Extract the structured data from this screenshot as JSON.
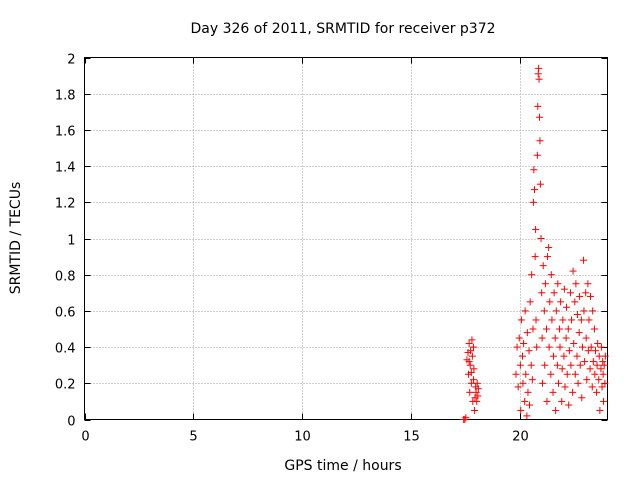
{
  "chart_data": {
    "type": "scatter",
    "title": "Day 326 of 2011, SRMTID for receiver p372",
    "xlabel": "GPS time / hours",
    "ylabel": "SRMTID / TECUs",
    "xlim": [
      0,
      24
    ],
    "ylim": [
      0,
      2
    ],
    "xticks": [
      0,
      5,
      10,
      15,
      20
    ],
    "yticks": [
      0,
      0.2,
      0.4,
      0.6,
      0.8,
      1,
      1.2,
      1.4,
      1.6,
      1.8,
      2
    ],
    "grid": true,
    "marker": "+",
    "color": "#ff0000",
    "series": [
      {
        "name": "p372",
        "points": [
          [
            17.4,
            0.0
          ],
          [
            17.45,
            0.0
          ],
          [
            17.5,
            0.01
          ],
          [
            17.55,
            0.33
          ],
          [
            17.6,
            0.37
          ],
          [
            17.62,
            0.25
          ],
          [
            17.65,
            0.42
          ],
          [
            17.68,
            0.15
          ],
          [
            17.7,
            0.3
          ],
          [
            17.72,
            0.38
          ],
          [
            17.75,
            0.2
          ],
          [
            17.78,
            0.44
          ],
          [
            17.8,
            0.35
          ],
          [
            17.82,
            0.1
          ],
          [
            17.85,
            0.4
          ],
          [
            17.87,
            0.28
          ],
          [
            17.9,
            0.05
          ],
          [
            17.92,
            0.12
          ],
          [
            17.95,
            0.18
          ],
          [
            17.97,
            0.15
          ],
          [
            18.0,
            0.1
          ],
          [
            18.02,
            0.2
          ],
          [
            18.05,
            0.13
          ],
          [
            18.07,
            0.17
          ],
          [
            17.65,
            0.32
          ],
          [
            17.75,
            0.26
          ],
          [
            17.85,
            0.22
          ],
          [
            19.8,
            0.25
          ],
          [
            19.85,
            0.4
          ],
          [
            19.9,
            0.18
          ],
          [
            19.95,
            0.45
          ],
          [
            20.0,
            0.3
          ],
          [
            20.02,
            0.05
          ],
          [
            20.05,
            0.55
          ],
          [
            20.1,
            0.35
          ],
          [
            20.12,
            0.2
          ],
          [
            20.15,
            0.42
          ],
          [
            20.2,
            0.1
          ],
          [
            20.22,
            0.6
          ],
          [
            20.25,
            0.25
          ],
          [
            20.3,
            0.02
          ],
          [
            20.32,
            0.48
          ],
          [
            20.35,
            0.15
          ],
          [
            20.4,
            0.38
          ],
          [
            20.42,
            0.08
          ],
          [
            20.45,
            0.65
          ],
          [
            20.5,
            0.3
          ],
          [
            20.52,
            0.8
          ],
          [
            20.55,
            0.22
          ],
          [
            20.58,
            0.5
          ],
          [
            20.6,
            1.2
          ],
          [
            20.62,
            1.38
          ],
          [
            20.65,
            1.27
          ],
          [
            20.68,
            0.9
          ],
          [
            20.7,
            1.05
          ],
          [
            20.72,
            0.55
          ],
          [
            20.75,
            0.4
          ],
          [
            20.78,
            1.46
          ],
          [
            20.8,
            1.73
          ],
          [
            20.82,
            1.91
          ],
          [
            20.84,
            1.94
          ],
          [
            20.86,
            1.88
          ],
          [
            20.88,
            1.67
          ],
          [
            20.9,
            1.54
          ],
          [
            20.92,
            1.3
          ],
          [
            20.95,
            1.0
          ],
          [
            20.98,
            0.7
          ],
          [
            21.0,
            0.45
          ],
          [
            21.02,
            0.2
          ],
          [
            21.05,
            0.85
          ],
          [
            21.1,
            0.6
          ],
          [
            21.12,
            0.3
          ],
          [
            21.15,
            0.75
          ],
          [
            21.2,
            0.5
          ],
          [
            21.22,
            0.1
          ],
          [
            21.25,
            0.9
          ],
          [
            21.3,
            0.95
          ],
          [
            21.32,
            0.4
          ],
          [
            21.35,
            0.65
          ],
          [
            21.4,
            0.25
          ],
          [
            21.42,
            0.8
          ],
          [
            21.45,
            0.55
          ],
          [
            21.5,
            0.15
          ],
          [
            21.52,
            0.35
          ],
          [
            21.55,
            0.7
          ],
          [
            21.6,
            0.45
          ],
          [
            21.62,
            0.05
          ],
          [
            21.65,
            0.6
          ],
          [
            21.7,
            0.3
          ],
          [
            21.72,
            0.75
          ],
          [
            21.75,
            0.2
          ],
          [
            21.8,
            0.5
          ],
          [
            21.82,
            0.4
          ],
          [
            21.85,
            0.65
          ],
          [
            21.9,
            0.1
          ],
          [
            21.92,
            0.28
          ],
          [
            21.95,
            0.55
          ],
          [
            22.0,
            0.35
          ],
          [
            22.02,
            0.72
          ],
          [
            22.05,
            0.18
          ],
          [
            22.1,
            0.45
          ],
          [
            22.12,
            0.62
          ],
          [
            22.15,
            0.25
          ],
          [
            22.2,
            0.5
          ],
          [
            22.22,
            0.08
          ],
          [
            22.25,
            0.38
          ],
          [
            22.3,
            0.7
          ],
          [
            22.32,
            0.3
          ],
          [
            22.35,
            0.55
          ],
          [
            22.4,
            0.15
          ],
          [
            22.42,
            0.82
          ],
          [
            22.45,
            0.42
          ],
          [
            22.5,
            0.65
          ],
          [
            22.52,
            0.25
          ],
          [
            22.55,
            0.75
          ],
          [
            22.6,
            0.35
          ],
          [
            22.62,
            0.58
          ],
          [
            22.65,
            0.2
          ],
          [
            22.7,
            0.48
          ],
          [
            22.72,
            0.68
          ],
          [
            22.75,
            0.3
          ],
          [
            22.8,
            0.55
          ],
          [
            22.82,
            0.12
          ],
          [
            22.85,
            0.4
          ],
          [
            22.9,
            0.88
          ],
          [
            22.92,
            0.6
          ],
          [
            22.95,
            0.32
          ],
          [
            23.0,
            0.7
          ],
          [
            23.02,
            0.45
          ],
          [
            23.05,
            0.22
          ],
          [
            23.1,
            0.75
          ],
          [
            23.12,
            0.38
          ],
          [
            23.15,
            0.55
          ],
          [
            23.2,
            0.28
          ],
          [
            23.22,
            0.68
          ],
          [
            23.25,
            0.4
          ],
          [
            23.3,
            0.18
          ],
          [
            23.32,
            0.6
          ],
          [
            23.35,
            0.32
          ],
          [
            23.4,
            0.5
          ],
          [
            23.42,
            0.25
          ],
          [
            23.45,
            0.38
          ],
          [
            23.5,
            0.15
          ],
          [
            23.52,
            0.3
          ],
          [
            23.55,
            0.42
          ],
          [
            23.6,
            0.22
          ],
          [
            23.62,
            0.35
          ],
          [
            23.65,
            0.05
          ],
          [
            23.7,
            0.28
          ],
          [
            23.72,
            0.4
          ],
          [
            23.75,
            0.18
          ],
          [
            23.78,
            0.32
          ],
          [
            23.8,
            0.25
          ],
          [
            23.82,
            0.1
          ],
          [
            23.85,
            0.3
          ],
          [
            23.88,
            0.2
          ],
          [
            23.9,
            0.35
          ]
        ]
      }
    ]
  }
}
